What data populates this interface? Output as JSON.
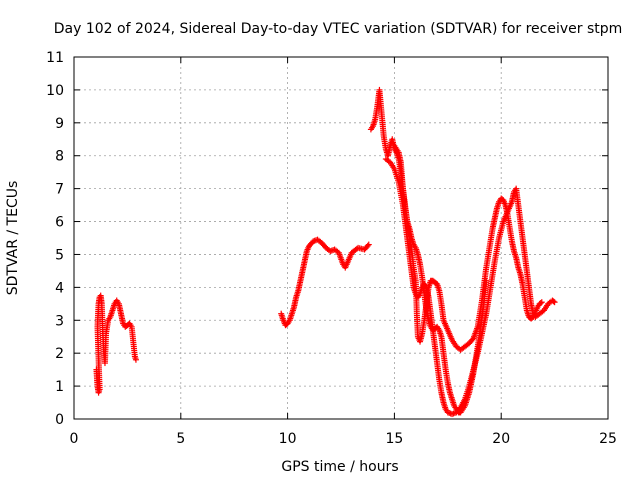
{
  "chart_data": {
    "type": "scatter",
    "title": "Day 102 of 2024, Sidereal Day-to-day VTEC variation (SDTVAR) for receiver stpm",
    "xlabel": "GPS time / hours",
    "ylabel": "SDTVAR / TECUs",
    "xlim": [
      0,
      25
    ],
    "ylim": [
      0,
      11
    ],
    "xticks": [
      0,
      5,
      10,
      15,
      20,
      25
    ],
    "yticks": [
      0,
      1,
      2,
      3,
      4,
      5,
      6,
      7,
      8,
      9,
      10,
      11
    ],
    "grid": true,
    "marker": "plus",
    "color": "#ff0000",
    "series": [
      {
        "name": "SDTVAR",
        "segments": [
          [
            [
              1.05,
              1.5
            ],
            [
              1.1,
              1.0
            ],
            [
              1.15,
              0.8
            ],
            [
              1.2,
              0.9
            ],
            [
              1.1,
              2.8
            ],
            [
              1.15,
              3.5
            ],
            [
              1.2,
              3.7
            ],
            [
              1.25,
              3.75
            ],
            [
              1.3,
              3.5
            ],
            [
              1.35,
              2.6
            ],
            [
              1.4,
              2.0
            ],
            [
              1.45,
              1.7
            ],
            [
              1.5,
              2.6
            ],
            [
              1.6,
              3.0
            ],
            [
              1.7,
              3.1
            ],
            [
              1.8,
              3.3
            ],
            [
              1.9,
              3.5
            ],
            [
              2.0,
              3.6
            ],
            [
              2.1,
              3.5
            ],
            [
              2.2,
              3.2
            ],
            [
              2.3,
              2.9
            ],
            [
              2.4,
              2.8
            ],
            [
              2.5,
              2.85
            ],
            [
              2.6,
              2.9
            ],
            [
              2.7,
              2.8
            ],
            [
              2.75,
              2.5
            ],
            [
              2.8,
              2.2
            ],
            [
              2.85,
              1.9
            ],
            [
              2.9,
              1.8
            ]
          ],
          [
            [
              9.7,
              3.2
            ],
            [
              9.8,
              3.0
            ],
            [
              9.9,
              2.85
            ],
            [
              10.0,
              2.9
            ],
            [
              10.1,
              3.0
            ],
            [
              10.2,
              3.2
            ],
            [
              10.3,
              3.4
            ],
            [
              10.4,
              3.7
            ],
            [
              10.5,
              3.9
            ],
            [
              10.6,
              4.2
            ],
            [
              10.7,
              4.5
            ],
            [
              10.8,
              4.8
            ],
            [
              10.9,
              5.1
            ],
            [
              11.0,
              5.25
            ],
            [
              11.2,
              5.4
            ],
            [
              11.4,
              5.45
            ],
            [
              11.6,
              5.35
            ],
            [
              11.8,
              5.2
            ],
            [
              12.0,
              5.1
            ],
            [
              12.2,
              5.15
            ],
            [
              12.4,
              5.05
            ],
            [
              12.6,
              4.7
            ],
            [
              12.7,
              4.6
            ],
            [
              12.8,
              4.75
            ],
            [
              13.0,
              5.05
            ],
            [
              13.3,
              5.2
            ],
            [
              13.6,
              5.15
            ],
            [
              13.8,
              5.3
            ]
          ],
          [
            [
              13.9,
              8.8
            ],
            [
              14.0,
              8.9
            ],
            [
              14.1,
              9.1
            ],
            [
              14.2,
              9.5
            ],
            [
              14.3,
              10.0
            ],
            [
              14.4,
              9.3
            ],
            [
              14.5,
              8.6
            ],
            [
              14.6,
              8.2
            ],
            [
              14.7,
              8.0
            ],
            [
              14.8,
              8.3
            ],
            [
              14.9,
              8.5
            ],
            [
              15.0,
              8.2
            ],
            [
              15.1,
              8.1
            ],
            [
              15.2,
              7.9
            ],
            [
              15.3,
              7.5
            ],
            [
              15.4,
              7.0
            ],
            [
              15.5,
              6.5
            ],
            [
              15.6,
              6.0
            ],
            [
              15.7,
              5.5
            ],
            [
              15.8,
              5.2
            ],
            [
              15.9,
              4.6
            ],
            [
              16.0,
              4.2
            ],
            [
              16.05,
              3.2
            ],
            [
              16.1,
              2.5
            ],
            [
              16.2,
              2.35
            ],
            [
              16.3,
              2.6
            ],
            [
              16.4,
              3.0
            ],
            [
              16.5,
              3.5
            ],
            [
              16.6,
              4.0
            ],
            [
              16.7,
              4.2
            ],
            [
              16.8,
              4.2
            ],
            [
              16.9,
              4.15
            ],
            [
              17.0,
              4.1
            ],
            [
              17.1,
              3.9
            ],
            [
              17.2,
              3.5
            ],
            [
              17.3,
              3.0
            ],
            [
              17.5,
              2.7
            ],
            [
              17.7,
              2.4
            ],
            [
              17.9,
              2.2
            ],
            [
              18.1,
              2.1
            ],
            [
              18.3,
              2.2
            ],
            [
              18.5,
              2.3
            ],
            [
              18.7,
              2.45
            ],
            [
              18.9,
              2.8
            ],
            [
              19.0,
              3.2
            ],
            [
              19.1,
              3.6
            ],
            [
              19.2,
              4.1
            ],
            [
              19.3,
              4.6
            ],
            [
              19.4,
              5.0
            ],
            [
              19.5,
              5.4
            ],
            [
              19.6,
              5.8
            ],
            [
              19.7,
              6.1
            ],
            [
              19.8,
              6.4
            ],
            [
              19.9,
              6.6
            ],
            [
              20.0,
              6.7
            ],
            [
              20.1,
              6.65
            ],
            [
              20.2,
              6.5
            ],
            [
              20.3,
              6.2
            ],
            [
              20.4,
              5.8
            ],
            [
              20.5,
              5.4
            ],
            [
              20.6,
              5.1
            ],
            [
              20.7,
              4.9
            ],
            [
              20.8,
              4.6
            ],
            [
              20.9,
              4.4
            ],
            [
              21.0,
              4.1
            ],
            [
              21.1,
              3.7
            ],
            [
              21.2,
              3.3
            ],
            [
              21.3,
              3.1
            ],
            [
              21.4,
              3.05
            ],
            [
              21.5,
              3.1
            ],
            [
              21.6,
              3.25
            ],
            [
              21.7,
              3.4
            ],
            [
              21.8,
              3.5
            ],
            [
              21.9,
              3.55
            ]
          ],
          [
            [
              14.6,
              7.9
            ],
            [
              14.8,
              7.8
            ],
            [
              15.0,
              7.6
            ],
            [
              15.2,
              7.2
            ],
            [
              15.4,
              6.5
            ],
            [
              15.5,
              6.0
            ],
            [
              15.6,
              5.5
            ],
            [
              15.7,
              5.0
            ],
            [
              15.8,
              4.5
            ],
            [
              15.9,
              4.0
            ],
            [
              16.0,
              3.8
            ],
            [
              16.1,
              3.7
            ],
            [
              16.2,
              3.8
            ],
            [
              16.3,
              4.0
            ],
            [
              16.4,
              4.1
            ],
            [
              16.5,
              4.0
            ],
            [
              16.6,
              3.7
            ],
            [
              16.7,
              3.2
            ],
            [
              16.8,
              2.7
            ],
            [
              16.9,
              2.2
            ],
            [
              17.0,
              1.7
            ],
            [
              17.1,
              1.2
            ],
            [
              17.2,
              0.8
            ],
            [
              17.3,
              0.5
            ],
            [
              17.4,
              0.3
            ],
            [
              17.5,
              0.2
            ],
            [
              17.7,
              0.15
            ],
            [
              17.9,
              0.2
            ],
            [
              18.1,
              0.35
            ],
            [
              18.3,
              0.6
            ],
            [
              18.5,
              1.0
            ],
            [
              18.7,
              1.5
            ],
            [
              18.9,
              2.0
            ],
            [
              19.1,
              2.6
            ],
            [
              19.3,
              3.2
            ],
            [
              19.5,
              4.0
            ],
            [
              19.7,
              4.8
            ],
            [
              19.9,
              5.5
            ],
            [
              20.1,
              6.0
            ],
            [
              20.3,
              6.3
            ],
            [
              20.5,
              6.6
            ],
            [
              20.6,
              6.9
            ],
            [
              20.7,
              7.0
            ],
            [
              20.8,
              6.5
            ],
            [
              20.9,
              6.0
            ],
            [
              21.0,
              5.5
            ],
            [
              21.1,
              5.0
            ],
            [
              21.2,
              4.5
            ],
            [
              21.3,
              4.0
            ],
            [
              21.4,
              3.5
            ],
            [
              21.5,
              3.2
            ],
            [
              21.6,
              3.1
            ],
            [
              21.8,
              3.2
            ],
            [
              22.0,
              3.3
            ],
            [
              22.2,
              3.5
            ],
            [
              22.4,
              3.6
            ],
            [
              22.5,
              3.55
            ]
          ],
          [
            [
              15.0,
              8.3
            ],
            [
              15.1,
              8.2
            ],
            [
              15.2,
              8.1
            ],
            [
              15.3,
              7.8
            ],
            [
              15.4,
              7.0
            ],
            [
              15.5,
              6.4
            ],
            [
              15.6,
              6.0
            ],
            [
              15.7,
              5.8
            ],
            [
              15.8,
              5.5
            ],
            [
              15.9,
              5.3
            ],
            [
              16.0,
              5.2
            ],
            [
              16.1,
              5.0
            ],
            [
              16.2,
              4.7
            ],
            [
              16.3,
              4.3
            ],
            [
              16.4,
              3.8
            ],
            [
              16.5,
              3.3
            ],
            [
              16.6,
              3.0
            ],
            [
              16.7,
              2.8
            ],
            [
              16.8,
              2.7
            ],
            [
              16.9,
              2.75
            ],
            [
              17.0,
              2.8
            ],
            [
              17.1,
              2.7
            ],
            [
              17.2,
              2.5
            ],
            [
              17.3,
              2.0
            ],
            [
              17.4,
              1.5
            ],
            [
              17.5,
              1.1
            ],
            [
              17.6,
              0.8
            ],
            [
              17.7,
              0.6
            ],
            [
              17.8,
              0.4
            ],
            [
              17.9,
              0.3
            ],
            [
              18.0,
              0.2
            ],
            [
              18.1,
              0.2
            ],
            [
              18.2,
              0.3
            ],
            [
              18.3,
              0.4
            ],
            [
              18.4,
              0.6
            ],
            [
              18.5,
              0.8
            ],
            [
              18.6,
              1.1
            ],
            [
              18.7,
              1.4
            ],
            [
              18.8,
              1.8
            ],
            [
              18.9,
              2.2
            ],
            [
              19.0,
              2.6
            ],
            [
              19.1,
              3.1
            ],
            [
              19.2,
              3.6
            ],
            [
              19.3,
              4.2
            ]
          ]
        ]
      }
    ]
  }
}
